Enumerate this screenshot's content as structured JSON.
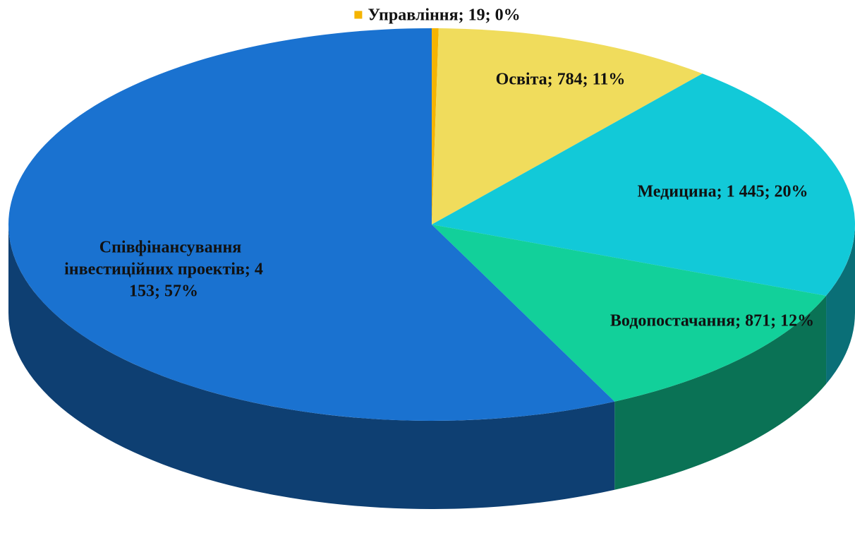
{
  "chart_data": {
    "type": "pie",
    "three_d": true,
    "categories": [
      "Управління",
      "Освіта",
      "Медицина",
      "Водопостачання",
      "Співфінансування інвестиційних проектів"
    ],
    "values": [
      19,
      784,
      1445,
      871,
      4153
    ],
    "value_labels": [
      "Управління; 19; 0%",
      "Освіта; 784; 11%",
      "Медицина; 1 445; 20%",
      "Водопостачання; 871; 12%",
      "Співфінансування інвестиційних проектів; 4 153; 57%"
    ],
    "colors": [
      "#f5b400",
      "#f0dc5c",
      "#12c9d8",
      "#12d09a",
      "#1a72d0"
    ]
  }
}
